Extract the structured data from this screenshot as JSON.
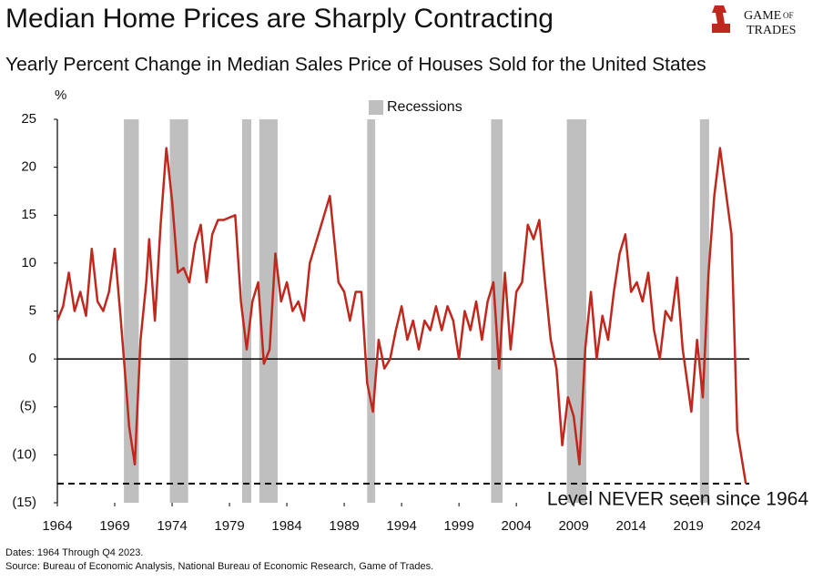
{
  "chart_data": {
    "type": "line",
    "title": "Median Home Prices are Sharply Contracting",
    "subtitle": "Yearly Percent Change in Median Sales Price of Houses Sold for the United States",
    "y_unit": "%",
    "x": [
      1964,
      1964.5,
      1965,
      1965.5,
      1966,
      1966.5,
      1967,
      1967.5,
      1968,
      1968.5,
      1969,
      1969.5,
      1970,
      1970.25,
      1970.75,
      1971.25,
      1971.75,
      1972,
      1972.5,
      1973,
      1973.5,
      1974,
      1974.5,
      1975,
      1975.5,
      1976,
      1976.5,
      1977,
      1977.5,
      1978,
      1978.5,
      1979.5,
      1980,
      1980.5,
      1981,
      1981.5,
      1982,
      1982.5,
      1983,
      1983.5,
      1984,
      1984.5,
      1985,
      1985.5,
      1986,
      1986.5,
      1987.75,
      1988.5,
      1989,
      1989.5,
      1990,
      1990.5,
      1991,
      1991.5,
      1992,
      1992.5,
      1993,
      1993.5,
      1994,
      1994.5,
      1995,
      1995.5,
      1996,
      1996.5,
      1997,
      1997.5,
      1998,
      1998.5,
      1999,
      1999.5,
      2000,
      2000.5,
      2001,
      2001.5,
      2002,
      2002.5,
      2003,
      2003.5,
      2004,
      2004.5,
      2005,
      2005.5,
      2006,
      2006.5,
      2007,
      2007.5,
      2008,
      2008.5,
      2009,
      2009.5,
      2010,
      2010.5,
      2011,
      2011.5,
      2012,
      2012.5,
      2013,
      2013.5,
      2014,
      2014.5,
      2015,
      2015.5,
      2016,
      2016.5,
      2017,
      2017.5,
      2018,
      2018.5,
      2019.25,
      2019.75,
      2020.25,
      2020.75,
      2021.25,
      2021.75,
      2022.25,
      2022.75,
      2023.25,
      2024
    ],
    "series": [
      {
        "color": "#c0281e",
        "values": [
          4,
          5.5,
          9,
          5,
          7,
          4.5,
          11.5,
          6,
          5,
          7,
          11.5,
          4.5,
          -3,
          -7,
          -11,
          2,
          8,
          12.5,
          4,
          14,
          22,
          16.5,
          9,
          9.5,
          8,
          12,
          14,
          8,
          13,
          14.5,
          14.5,
          15,
          6,
          1,
          6,
          8,
          -0.5,
          1,
          11,
          6,
          8,
          5,
          6,
          4,
          10,
          12,
          17,
          8,
          7,
          4,
          7,
          7,
          -2.5,
          -5.5,
          2,
          -1,
          0,
          3,
          5.5,
          2,
          4,
          1,
          4,
          3,
          5.5,
          3,
          5.5,
          4,
          0,
          5,
          3,
          6,
          2,
          6,
          8,
          -1,
          9,
          1,
          7,
          8,
          14,
          12.5,
          14.5,
          8,
          2,
          -1,
          -9,
          -4,
          -6,
          -11,
          1,
          7,
          0,
          4.5,
          2,
          7,
          11,
          13,
          7,
          8,
          6,
          9,
          3,
          0,
          5,
          4,
          8.5,
          1,
          -5.5,
          2,
          -4,
          9,
          17,
          22,
          17.5,
          13,
          -7.5,
          -13
        ]
      }
    ],
    "recessions": {
      "name": "Recessions",
      "color": "#bfbfbf",
      "periods": [
        [
          1969.8,
          1971.1
        ],
        [
          1973.8,
          1975.4
        ],
        [
          1980.1,
          1980.9
        ],
        [
          1981.6,
          1983.2
        ],
        [
          1991.0,
          1991.7
        ],
        [
          2001.8,
          2002.8
        ],
        [
          2008.4,
          2010.1
        ],
        [
          2020.0,
          2020.8
        ]
      ]
    },
    "xlim": [
      1964,
      2024.3
    ],
    "xticks": [
      1964,
      1969,
      1974,
      1979,
      1984,
      1989,
      1994,
      1999,
      2004,
      2009,
      2014,
      2019,
      2024
    ],
    "ylim": [
      -15,
      25
    ],
    "yticks": [
      25,
      20,
      15,
      10,
      5,
      0,
      {
        "value": -5,
        "label": "(5)"
      },
      {
        "value": -10,
        "label": "(10)"
      },
      {
        "value": -15,
        "label": "(15)"
      }
    ],
    "reference_line": {
      "value": -13,
      "label": "Level NEVER seen since 1964"
    },
    "notes": [
      "Dates: 1964 Through Q4 2023.",
      "Source: Bureau of Economic Analysis, National Bureau of Economic Research, Game of Trades."
    ]
  },
  "logo": {
    "line1": "GAME",
    "small": "OF",
    "line2": "TRADES"
  }
}
